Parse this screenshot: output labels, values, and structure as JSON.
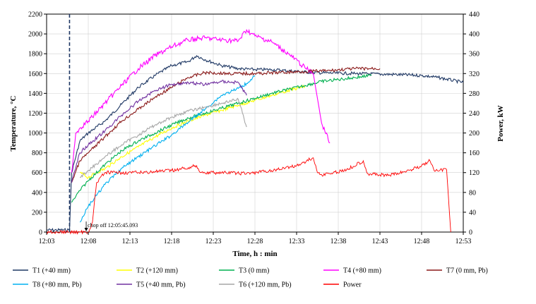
{
  "chart_data": {
    "type": "line",
    "xlabel": "Time, h : min",
    "ylabel": "Temperature, °C",
    "y2label": "Power, kW",
    "xlim": [
      "12:03",
      "12:53"
    ],
    "ylim": [
      0,
      2200
    ],
    "y2lim": [
      0,
      440
    ],
    "x_ticks": [
      "12:03",
      "12:08",
      "12:13",
      "12:18",
      "12:23",
      "12:28",
      "12:33",
      "12:38",
      "12:43",
      "12:48",
      "12:53"
    ],
    "y_ticks": [
      0,
      200,
      400,
      600,
      800,
      1000,
      1200,
      1400,
      1600,
      1800,
      2000,
      2200
    ],
    "y2_ticks": [
      0,
      40,
      80,
      120,
      160,
      200,
      240,
      280,
      320,
      360,
      400,
      440
    ],
    "grid": true,
    "legend_position": "bottom",
    "annotation": {
      "text": "chop off 12:05:45.093",
      "x": "12:07:45"
    },
    "vertical_marker": {
      "x": "12:05:45",
      "style": "dashed"
    },
    "series": [
      {
        "name": "T1 (+40 mm)",
        "color": "#1f3864",
        "axis": "left",
        "x": [
          "12:03",
          "12:05:45",
          "12:06:00",
          "12:07:00",
          "12:08:00",
          "12:10:00",
          "12:12:00",
          "12:14:00",
          "12:16:00",
          "12:18:00",
          "12:20:00",
          "12:21:00",
          "12:22:00",
          "12:24:00",
          "12:26:00",
          "12:28:00",
          "12:30:00",
          "12:35:00",
          "12:40:00",
          "12:45:00",
          "12:48:00",
          "12:50:00",
          "12:53:00"
        ],
        "y": [
          20,
          20,
          600,
          920,
          1000,
          1120,
          1290,
          1460,
          1580,
          1680,
          1720,
          1780,
          1740,
          1680,
          1650,
          1640,
          1640,
          1610,
          1600,
          1590,
          1580,
          1560,
          1510
        ]
      },
      {
        "name": "T2 (+120 mm)",
        "color": "#ffff00",
        "axis": "left",
        "x": [
          "12:07:00",
          "12:08:00",
          "12:09:00",
          "12:10:00",
          "12:12:00",
          "12:14:00",
          "12:16:00",
          "12:18:00",
          "12:20:00",
          "12:22:00",
          "12:24:00",
          "12:26:00",
          "12:28:00",
          "12:30:00",
          "12:32:00",
          "12:34:00"
        ],
        "y": [
          600,
          550,
          600,
          640,
          760,
          860,
          960,
          1050,
          1120,
          1180,
          1230,
          1280,
          1330,
          1380,
          1430,
          1470
        ]
      },
      {
        "name": "T3 (0 mm)",
        "color": "#00b050",
        "axis": "left",
        "x": [
          "12:06:00",
          "12:07:00",
          "12:08:00",
          "12:10:00",
          "12:12:00",
          "12:14:00",
          "12:16:00",
          "12:18:00",
          "12:20:00",
          "12:22:00",
          "12:24:00",
          "12:26:00",
          "12:28:00",
          "12:30:00",
          "12:32:00",
          "12:34:00",
          "12:36:00",
          "12:38:00",
          "12:40:00",
          "12:42:00"
        ],
        "y": [
          300,
          420,
          520,
          680,
          820,
          920,
          1000,
          1080,
          1150,
          1200,
          1250,
          1300,
          1350,
          1400,
          1440,
          1480,
          1520,
          1540,
          1560,
          1580
        ]
      },
      {
        "name": "T4 (+80 mm)",
        "color": "#ff00ff",
        "axis": "left",
        "x": [
          "12:06:00",
          "12:06:30",
          "12:07:00",
          "12:08:00",
          "12:10:00",
          "12:12:00",
          "12:14:00",
          "12:16:00",
          "12:18:00",
          "12:20:00",
          "12:22:00",
          "12:24:00",
          "12:26:00",
          "12:27:00",
          "12:28:00",
          "12:30:00",
          "12:32:00",
          "12:34:00",
          "12:35:00",
          "12:36:00",
          "12:37:00"
        ],
        "y": [
          600,
          1000,
          1050,
          1120,
          1300,
          1480,
          1650,
          1780,
          1870,
          1940,
          1960,
          1940,
          1930,
          2040,
          1980,
          1920,
          1800,
          1660,
          1600,
          1100,
          900
        ]
      },
      {
        "name": "T7 (0 mm, Pb)",
        "color": "#8b1a1a",
        "axis": "left",
        "x": [
          "12:06:00",
          "12:07:00",
          "12:08:00",
          "12:10:00",
          "12:12:00",
          "12:14:00",
          "12:16:00",
          "12:18:00",
          "12:20:00",
          "12:22:00",
          "12:25:00",
          "12:28:00",
          "12:31:00",
          "12:34:00",
          "12:37:00",
          "12:40:00",
          "12:43:00"
        ],
        "y": [
          500,
          720,
          800,
          960,
          1120,
          1240,
          1360,
          1460,
          1560,
          1610,
          1600,
          1600,
          1610,
          1620,
          1630,
          1650,
          1650
        ]
      },
      {
        "name": "T8 (+80 mm, Pb)",
        "color": "#00b0f0",
        "axis": "left",
        "x": [
          "12:07:00",
          "12:08:00",
          "12:10:00",
          "12:12:00",
          "12:14:00",
          "12:16:00",
          "12:18:00",
          "12:20:00",
          "12:22:00",
          "12:24:00",
          "12:26:00",
          "12:27:00",
          "12:28:00"
        ],
        "y": [
          100,
          260,
          480,
          640,
          760,
          870,
          980,
          1110,
          1240,
          1380,
          1450,
          1500,
          1580
        ]
      },
      {
        "name": "T5 (+40 mm, Pb)",
        "color": "#7030a0",
        "axis": "left",
        "x": [
          "12:06:00",
          "12:07:00",
          "12:08:00",
          "12:10:00",
          "12:12:00",
          "12:14:00",
          "12:16:00",
          "12:18:00",
          "12:20:00",
          "12:22:00",
          "12:24:00",
          "12:26:00",
          "12:27:00"
        ],
        "y": [
          500,
          800,
          880,
          1020,
          1180,
          1320,
          1430,
          1490,
          1510,
          1490,
          1520,
          1510,
          1380
        ]
      },
      {
        "name": "T6 (+120 mm, Pb)",
        "color": "#a6a6a6",
        "axis": "left",
        "x": [
          "12:07:00",
          "12:08:00",
          "12:10:00",
          "12:12:00",
          "12:14:00",
          "12:16:00",
          "12:18:00",
          "12:20:00",
          "12:22:00",
          "12:24:00",
          "12:26:00",
          "12:27:00"
        ],
        "y": [
          550,
          620,
          760,
          880,
          980,
          1080,
          1160,
          1220,
          1260,
          1300,
          1340,
          1060
        ]
      },
      {
        "name": "Power",
        "color": "#ff0000",
        "axis": "right",
        "x": [
          "12:03",
          "12:07:00",
          "12:08:00",
          "12:08:30",
          "12:09:00",
          "12:10:00",
          "12:12:00",
          "12:14:00",
          "12:16:00",
          "12:18:00",
          "12:20:00",
          "12:21:00",
          "12:21:30",
          "12:24:00",
          "12:27:00",
          "12:30:00",
          "12:33:00",
          "12:35:00",
          "12:35:30",
          "12:36:00",
          "12:37:00",
          "12:39:00",
          "12:41:00",
          "12:41:30",
          "12:44:00",
          "12:46:00",
          "12:48:00",
          "12:49:00",
          "12:49:30",
          "12:51:00",
          "12:51:30"
        ],
        "y": [
          0,
          0,
          0,
          20,
          100,
          120,
          120,
          120,
          122,
          124,
          130,
          134,
          120,
          120,
          118,
          124,
          134,
          150,
          120,
          116,
          118,
          126,
          144,
          118,
          114,
          122,
          134,
          144,
          124,
          126,
          0
        ]
      }
    ]
  }
}
